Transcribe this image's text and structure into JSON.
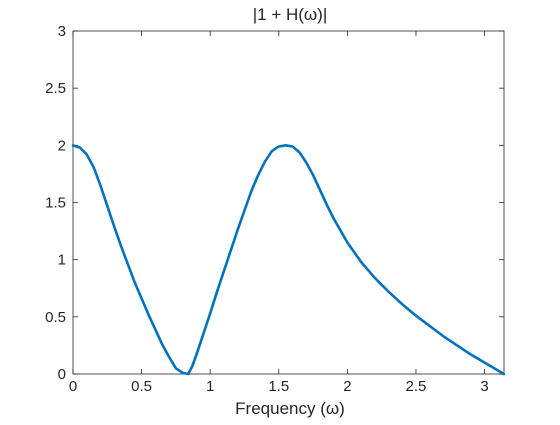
{
  "chart_data": {
    "type": "line",
    "title": "|1 + H(ω)|",
    "xlabel": "Frequency (ω)",
    "ylabel": "",
    "xlim": [
      0,
      3.14159
    ],
    "ylim": [
      0,
      3
    ],
    "x_ticks": [
      0,
      0.5,
      1,
      1.5,
      2,
      2.5,
      3
    ],
    "x_tick_labels": [
      "0",
      "0.5",
      "1",
      "1.5",
      "2",
      "2.5",
      "3"
    ],
    "y_ticks": [
      0,
      0.5,
      1,
      1.5,
      2,
      2.5,
      3
    ],
    "y_tick_labels": [
      "0",
      "0.5",
      "1",
      "1.5",
      "2",
      "2.5",
      "3"
    ],
    "grid": false,
    "legend": "none",
    "series": [
      {
        "color": "#0072BD",
        "x": [
          0,
          0.05,
          0.1,
          0.15,
          0.2,
          0.25,
          0.3,
          0.35,
          0.4,
          0.45,
          0.5,
          0.55,
          0.6,
          0.65,
          0.7,
          0.75,
          0.8,
          0.84,
          0.87,
          0.9,
          0.95,
          1.0,
          1.05,
          1.1,
          1.15,
          1.2,
          1.25,
          1.3,
          1.35,
          1.4,
          1.45,
          1.5,
          1.55,
          1.6,
          1.65,
          1.7,
          1.75,
          1.8,
          1.85,
          1.9,
          2.0,
          2.1,
          2.2,
          2.3,
          2.4,
          2.5,
          2.6,
          2.7,
          2.8,
          2.9,
          3.0,
          3.1,
          3.14
        ],
        "y": [
          2.0,
          1.98,
          1.92,
          1.81,
          1.65,
          1.47,
          1.29,
          1.12,
          0.96,
          0.8,
          0.66,
          0.52,
          0.39,
          0.26,
          0.15,
          0.05,
          0.01,
          0.0,
          0.07,
          0.17,
          0.35,
          0.53,
          0.72,
          0.9,
          1.08,
          1.26,
          1.43,
          1.6,
          1.74,
          1.86,
          1.95,
          1.99,
          2.0,
          1.99,
          1.94,
          1.85,
          1.74,
          1.61,
          1.48,
          1.36,
          1.15,
          0.98,
          0.84,
          0.72,
          0.61,
          0.51,
          0.42,
          0.33,
          0.25,
          0.17,
          0.1,
          0.03,
          0.0
        ]
      }
    ]
  }
}
